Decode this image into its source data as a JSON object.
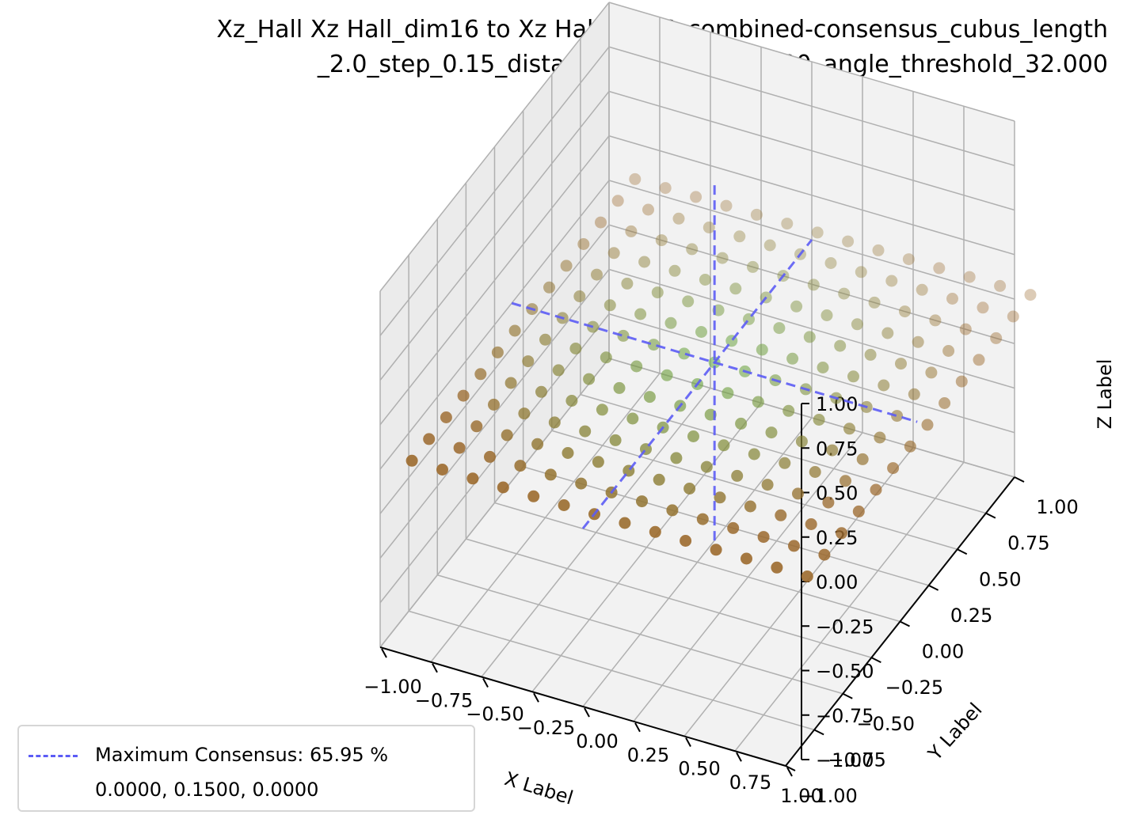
{
  "title": {
    "line1": "Xz_Hall Xz Hall_dim16 to Xz Hall_als16_combined-consensus_cubus_length",
    "line2": "_2.0_step_0.15_distance_threshold_0.200_angle_threshold_32.000"
  },
  "legend": {
    "entry_label": "Maximum Consensus: 65.95 %",
    "coords_label": "0.0000, 0.1500, 0.0000"
  },
  "chart_data": {
    "type": "scatter",
    "projection": "3d",
    "title": "Xz_Hall Xz Hall_dim16 to Xz Hall_als16_combined-consensus_cubus_length_2.0_step_0.15_distance_threshold_0.200_angle_threshold_32.000",
    "xlabel": "X Label",
    "ylabel": "Y Label",
    "zlabel": "Z Label",
    "xlim": [
      -1.0,
      1.0
    ],
    "ylim": [
      -1.0,
      1.0
    ],
    "zlim": [
      -1.0,
      1.0
    ],
    "x_ticks": [
      "−1.00",
      "−0.75",
      "−0.50",
      "−0.25",
      "0.00",
      "0.25",
      "0.50",
      "0.75",
      "1.00"
    ],
    "y_ticks": [
      "−1.00",
      "−0.75",
      "−0.50",
      "−0.25",
      "0.00",
      "0.25",
      "0.50",
      "0.75",
      "1.00"
    ],
    "z_ticks": [
      "−1.00",
      "−0.75",
      "−0.50",
      "−0.25",
      "0.00",
      "0.25",
      "0.50",
      "0.75",
      "1.00"
    ],
    "grid": true,
    "legend_placement": "lower-left",
    "grid_points": {
      "x_range": [
        -0.9,
        1.05
      ],
      "y_range": [
        -0.9,
        1.05
      ],
      "step": 0.15,
      "z_plane": 0.0,
      "count_per_axis": 14
    },
    "color_scale": {
      "low_consensus": "#9c6a2e",
      "high_consensus": "#6ab04c",
      "max_at": [
        0.0,
        0.15,
        0.0
      ]
    },
    "max_consensus": {
      "value_percent": 65.95,
      "point": [
        0.0,
        0.15,
        0.0
      ],
      "line_style": "dashed",
      "color": "#5c5cf5"
    }
  }
}
